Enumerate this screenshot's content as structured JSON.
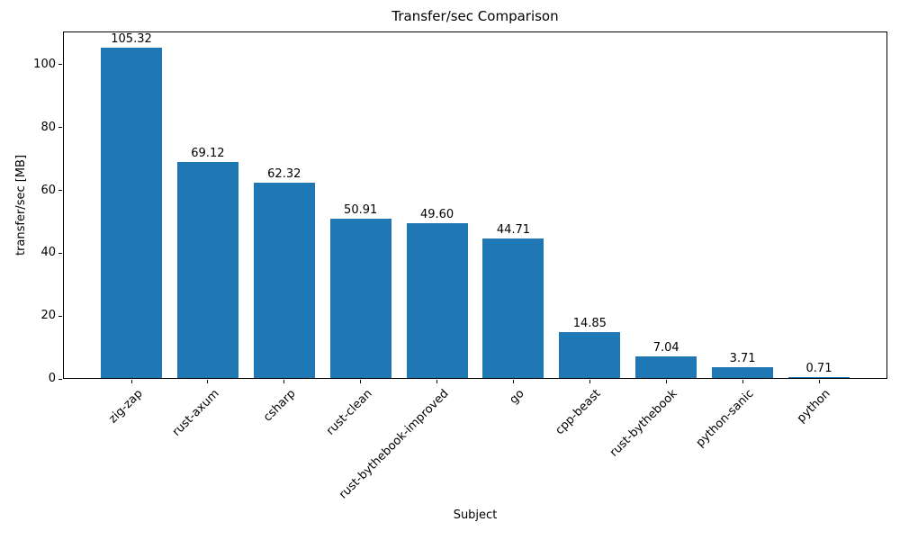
{
  "chart_data": {
    "type": "bar",
    "title": "Transfer/sec Comparison",
    "xlabel": "Subject",
    "ylabel": "transfer/sec [MB]",
    "categories": [
      "zig-zap",
      "rust-axum",
      "csharp",
      "rust-clean",
      "rust-bythebook-improved",
      "go",
      "cpp-beast",
      "rust-bythebook",
      "python-sanic",
      "python"
    ],
    "values": [
      105.32,
      69.12,
      62.32,
      50.91,
      49.6,
      44.71,
      14.85,
      7.04,
      3.71,
      0.71
    ],
    "value_labels": [
      "105.32",
      "69.12",
      "62.32",
      "50.91",
      "49.60",
      "44.71",
      "14.85",
      "7.04",
      "3.71",
      "0.71"
    ],
    "yticks": [
      0,
      20,
      40,
      60,
      80,
      100
    ],
    "ylim": [
      0,
      110.6
    ],
    "xtick_rotation": 45,
    "grid": false,
    "legend": null,
    "bar_color": "#1f77b4",
    "text_color": "#000000",
    "background_color": "#ffffff"
  }
}
